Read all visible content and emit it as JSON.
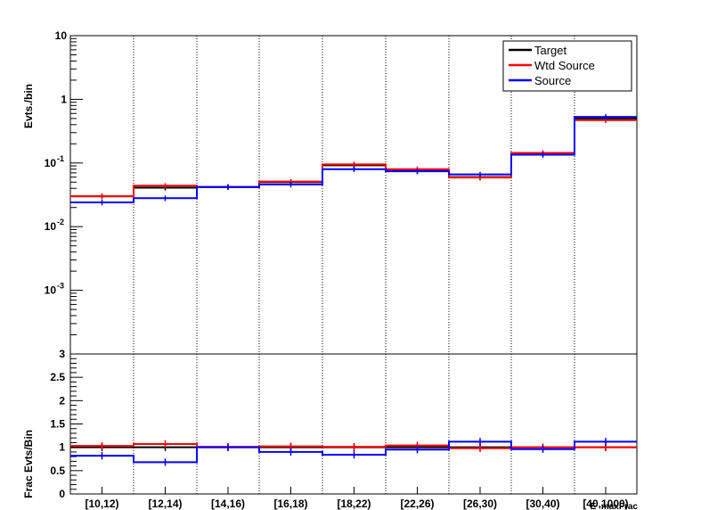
{
  "chart_data": [
    {
      "type": "line",
      "panel": "top",
      "ylabel": "Evts./bin",
      "yscale": "log",
      "ylim": [
        0.0001,
        10
      ],
      "y_ticks": [
        {
          "value": 10,
          "base": "10",
          "exp": ""
        },
        {
          "value": 1,
          "base": "1",
          "exp": ""
        },
        {
          "value": 0.1,
          "base": "10",
          "exp": "-1"
        },
        {
          "value": 0.01,
          "base": "10",
          "exp": "-2"
        },
        {
          "value": 0.001,
          "base": "10",
          "exp": "-3"
        }
      ],
      "categories": [
        "[10,12)",
        "[12,14)",
        "[14,16)",
        "[16,18)",
        "[18,22)",
        "[22,26)",
        "[26,30)",
        "[30,40)",
        "[40,1000)"
      ],
      "legend": {
        "position": "top-right"
      },
      "series": [
        {
          "name": "Target",
          "color": "#000000",
          "values": [
            0.03,
            0.041,
            0.042,
            0.05,
            0.092,
            0.076,
            0.06,
            0.136,
            0.5
          ]
        },
        {
          "name": "Wtd Source",
          "color": "#ff0000",
          "values": [
            0.03,
            0.044,
            0.042,
            0.051,
            0.095,
            0.08,
            0.059,
            0.144,
            0.47
          ]
        },
        {
          "name": "Source",
          "color": "#0000ff",
          "values": [
            0.024,
            0.028,
            0.042,
            0.046,
            0.08,
            0.074,
            0.066,
            0.135,
            0.53
          ]
        }
      ]
    },
    {
      "type": "line",
      "panel": "bottom",
      "ylabel": "Frac Evts/Bin",
      "ylim": [
        0,
        3
      ],
      "y_ticks": [
        "0",
        "0.5",
        "1",
        "1.5",
        "2",
        "2.5",
        "3"
      ],
      "xlabel": "E_maxFrac",
      "categories": [
        "[10,12)",
        "[12,14)",
        "[14,16)",
        "[16,18)",
        "[18,22)",
        "[22,26)",
        "[26,30)",
        "[30,40)",
        "[40,1000)"
      ],
      "series": [
        {
          "name": "Wtd Source",
          "color": "#ff0000",
          "values": [
            1.03,
            1.07,
            1.01,
            1.02,
            1.01,
            1.04,
            0.98,
            1.0,
            1.0
          ]
        },
        {
          "name": "Source",
          "color": "#0000ff",
          "values": [
            0.82,
            0.68,
            1.0,
            0.9,
            0.84,
            0.95,
            1.12,
            0.96,
            1.12
          ]
        },
        {
          "name": "Target",
          "color": "#000000",
          "values": [
            1.0,
            1.0,
            1.0,
            1.0,
            1.0,
            1.0,
            1.0,
            1.0,
            1.0
          ]
        }
      ]
    }
  ]
}
